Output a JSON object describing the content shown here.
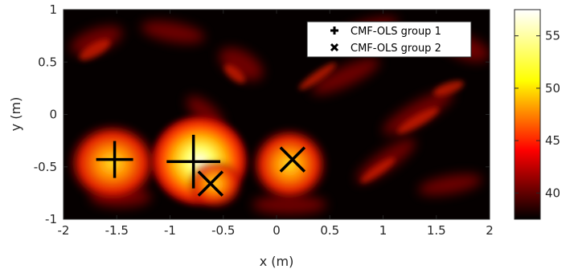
{
  "chart_data": {
    "type": "heatmap",
    "title": "",
    "xlabel": "x (m)",
    "ylabel": "y (m)",
    "xlim": [
      -2,
      2
    ],
    "ylim": [
      -1,
      1
    ],
    "x_ticks": [
      -2,
      -1.5,
      -1,
      -0.5,
      0,
      0.5,
      1,
      1.5,
      2
    ],
    "x_tick_labels": [
      "-2",
      "-1.5",
      "-1",
      "-0.5",
      "0",
      "0.5",
      "1",
      "1.5",
      "2"
    ],
    "y_ticks": [
      -1,
      -0.5,
      0,
      0.5,
      1
    ],
    "y_tick_labels": [
      "-1",
      "-0.5",
      "0",
      "0.5",
      "1"
    ],
    "colorbar": {
      "range": [
        37.5,
        57.5
      ],
      "ticks": [
        40,
        45,
        50,
        55
      ],
      "tick_labels": [
        "40",
        "45",
        "50",
        "55"
      ],
      "colormap": "hot"
    },
    "grid": false,
    "legend_position": "top-right",
    "hotspots": [
      {
        "x": -1.52,
        "y": -0.43,
        "peak": 55
      },
      {
        "x": -0.78,
        "y": -0.45,
        "peak": 57.5
      },
      {
        "x": -0.62,
        "y": -0.66,
        "peak": 55
      },
      {
        "x": 0.15,
        "y": -0.43,
        "peak": 53
      }
    ],
    "series": [
      {
        "name": "CMF-OLS group 1",
        "marker": "+",
        "color": "#000000",
        "points": [
          {
            "x": -1.52,
            "y": -0.43,
            "size": 1.0
          },
          {
            "x": -0.78,
            "y": -0.45,
            "size": 1.45
          }
        ]
      },
      {
        "name": "CMF-OLS group 2",
        "marker": "x",
        "color": "#000000",
        "points": [
          {
            "x": -0.62,
            "y": -0.66,
            "size": 1.0
          },
          {
            "x": 0.15,
            "y": -0.43,
            "size": 1.0
          }
        ]
      }
    ]
  }
}
